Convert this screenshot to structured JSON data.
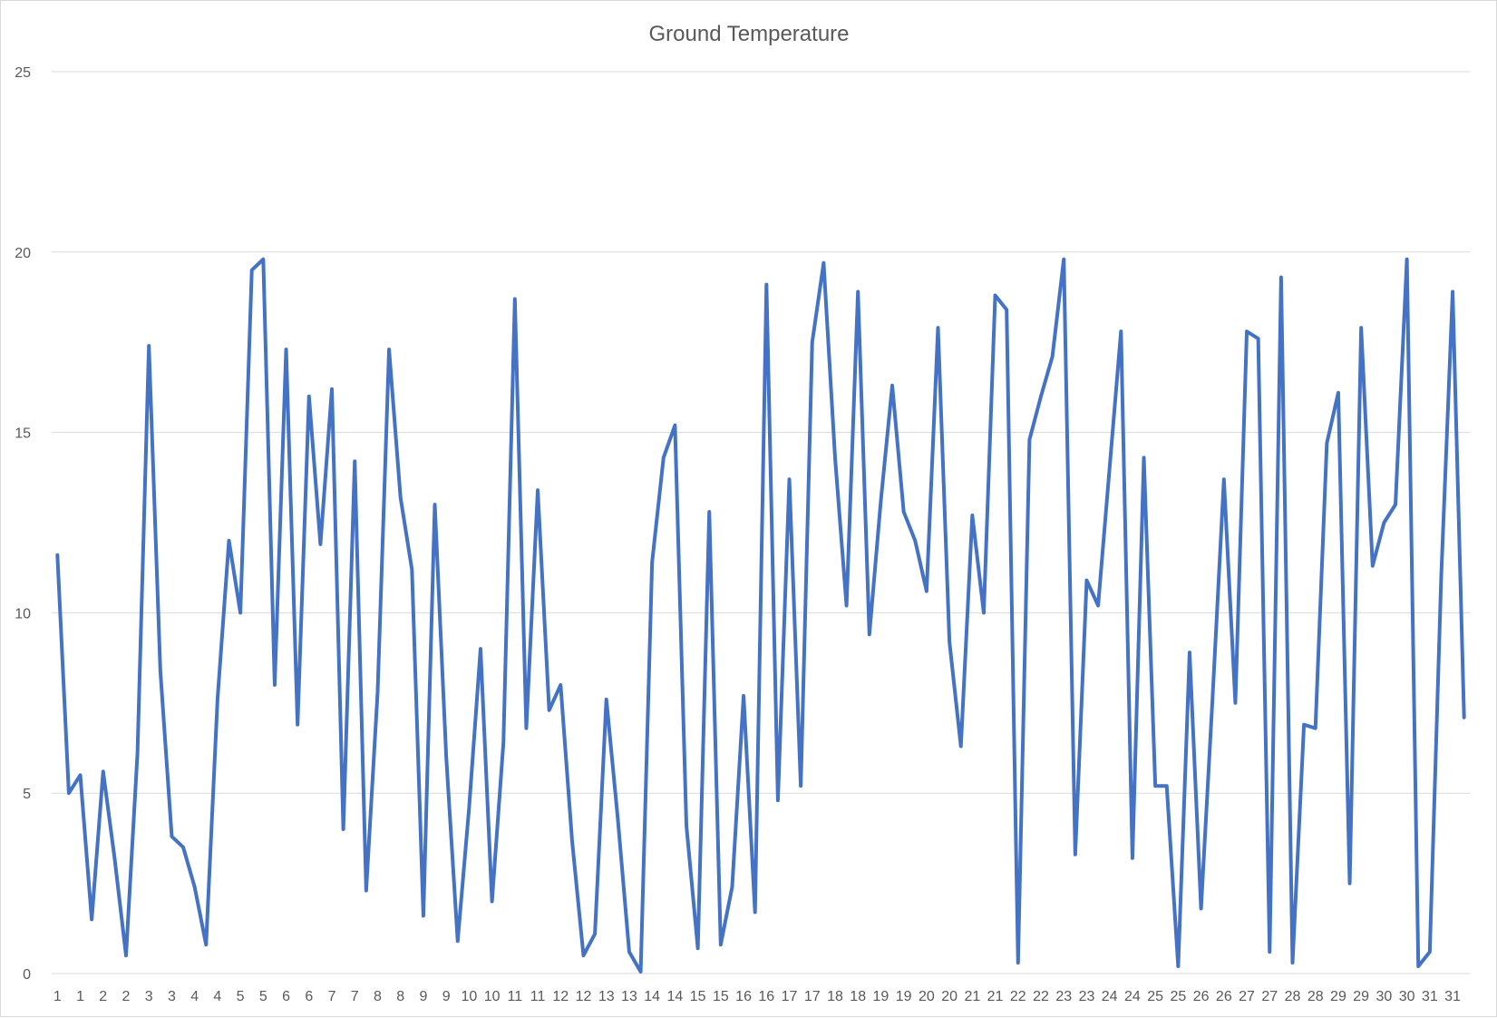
{
  "chart_data": {
    "type": "line",
    "title": "Ground Temperature",
    "xlabel": "",
    "ylabel": "",
    "ylim": [
      0,
      25
    ],
    "y_ticks": [
      0,
      5,
      10,
      15,
      20,
      25
    ],
    "grid": "horizontal",
    "legend": "none",
    "x": [
      "1",
      "1",
      "1",
      "1",
      "2",
      "2",
      "2",
      "2",
      "3",
      "3",
      "3",
      "3",
      "4",
      "4",
      "4",
      "4",
      "5",
      "5",
      "5",
      "5",
      "6",
      "6",
      "6",
      "6",
      "7",
      "7",
      "7",
      "7",
      "8",
      "8",
      "8",
      "8",
      "9",
      "9",
      "9",
      "9",
      "10",
      "10",
      "10",
      "10",
      "11",
      "11",
      "11",
      "11",
      "12",
      "12",
      "12",
      "12",
      "13",
      "13",
      "13",
      "13",
      "14",
      "14",
      "14",
      "14",
      "15",
      "15",
      "15",
      "15",
      "16",
      "16",
      "16",
      "16",
      "17",
      "17",
      "17",
      "17",
      "18",
      "18",
      "18",
      "18",
      "19",
      "19",
      "19",
      "19",
      "20",
      "20",
      "20",
      "20",
      "21",
      "21",
      "21",
      "21",
      "22",
      "22",
      "22",
      "22",
      "23",
      "23",
      "23",
      "23",
      "24",
      "24",
      "24",
      "24",
      "25",
      "25",
      "25",
      "25",
      "26",
      "26",
      "26",
      "26",
      "27",
      "27",
      "27",
      "27",
      "28",
      "28",
      "28",
      "28",
      "29",
      "29",
      "29",
      "29",
      "30",
      "30",
      "30",
      "30",
      "31",
      "31",
      "31",
      "31"
    ],
    "series": [
      {
        "color": "#4472c4",
        "values": [
          11.6,
          5.0,
          5.5,
          1.5,
          5.6,
          3.2,
          0.5,
          6.1,
          17.4,
          8.4,
          3.8,
          3.5,
          2.4,
          0.8,
          7.6,
          12.0,
          10.0,
          19.5,
          19.8,
          8.0,
          17.3,
          6.9,
          16.0,
          11.9,
          16.2,
          4.0,
          14.2,
          2.3,
          7.8,
          17.3,
          13.2,
          11.2,
          1.6,
          13.0,
          6.0,
          0.9,
          4.6,
          9.0,
          2.0,
          6.4,
          18.7,
          6.8,
          13.4,
          7.3,
          8.0,
          3.7,
          0.5,
          1.1,
          7.6,
          4.3,
          0.6,
          0.05,
          11.4,
          14.3,
          15.2,
          4.1,
          0.7,
          12.8,
          0.8,
          2.4,
          7.7,
          1.7,
          19.1,
          4.8,
          13.7,
          5.2,
          17.5,
          19.7,
          14.3,
          10.2,
          18.9,
          9.4,
          13.1,
          16.3,
          12.8,
          12.0,
          10.6,
          17.9,
          9.2,
          6.3,
          12.7,
          10.0,
          18.8,
          18.4,
          0.3,
          14.8,
          16.0,
          17.1,
          19.8,
          3.3,
          10.9,
          10.2,
          14.0,
          17.8,
          3.2,
          14.3,
          5.2,
          5.2,
          0.2,
          8.9,
          1.8,
          7.6,
          13.7,
          7.5,
          17.8,
          17.6,
          0.6,
          19.3,
          0.3,
          6.9,
          6.8,
          14.7,
          16.1,
          2.5,
          17.9,
          11.3,
          12.5,
          13.0,
          19.8,
          0.2,
          0.6,
          11.0,
          18.9,
          7.1
        ]
      }
    ]
  }
}
